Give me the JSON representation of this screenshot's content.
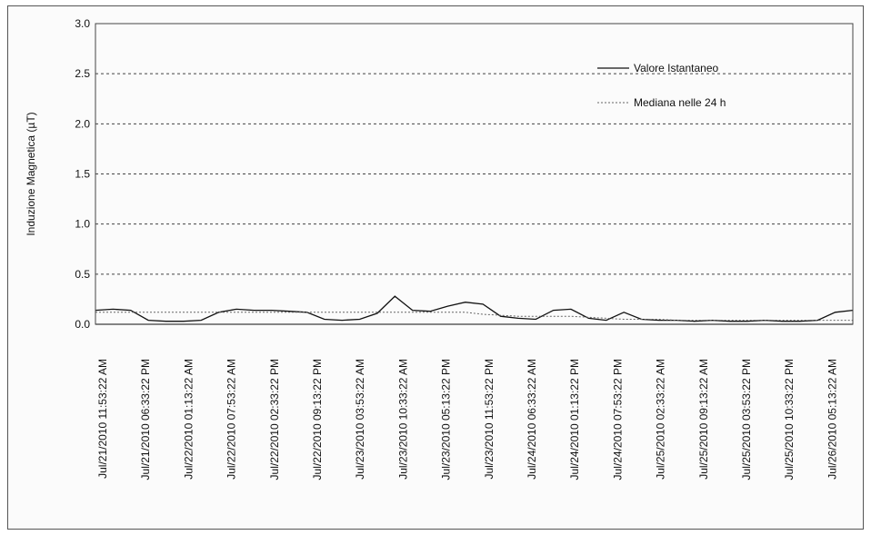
{
  "chart_data": {
    "type": "line",
    "ylabel": "Induzione Magnetica (µT)",
    "ylim": [
      0,
      3.0
    ],
    "yticks": [
      "0.0",
      "0.5",
      "1.0",
      "1.5",
      "2.0",
      "2.5",
      "3.0"
    ],
    "grid": "horizontal-dashed",
    "legend_position": "top-right",
    "x_labels": [
      "Jul/21/2010 11:53:22 AM",
      "Jul/21/2010 06:33:22 PM",
      "Jul/22/2010 01:13:22 AM",
      "Jul/22/2010 07:53:22 AM",
      "Jul/22/2010 02:33:22 PM",
      "Jul/22/2010 09:13:22 PM",
      "Jul/23/2010 03:53:22 AM",
      "Jul/23/2010 10:33:22 AM",
      "Jul/23/2010 05:13:22 PM",
      "Jul/23/2010 11:53:22 PM",
      "Jul/24/2010 06:33:22 AM",
      "Jul/24/2010 01:13:22 PM",
      "Jul/24/2010 07:53:22 PM",
      "Jul/25/2010 02:33:22 AM",
      "Jul/25/2010 09:13:22 AM",
      "Jul/25/2010 03:53:22 PM",
      "Jul/25/2010 10:33:22 PM",
      "Jul/26/2010 05:13:22 AM"
    ],
    "series": [
      {
        "name": "Valore Istantaneo",
        "color": "#111111",
        "style": "solid",
        "values": [
          0.14,
          0.15,
          0.14,
          0.04,
          0.03,
          0.03,
          0.04,
          0.12,
          0.15,
          0.14,
          0.14,
          0.13,
          0.12,
          0.05,
          0.04,
          0.05,
          0.11,
          0.28,
          0.14,
          0.13,
          0.18,
          0.22,
          0.2,
          0.08,
          0.06,
          0.05,
          0.14,
          0.15,
          0.06,
          0.04,
          0.12,
          0.05,
          0.04,
          0.04,
          0.03,
          0.04,
          0.03,
          0.03,
          0.04,
          0.03,
          0.03,
          0.04,
          0.12,
          0.14
        ]
      },
      {
        "name": "Mediana nelle 24 h",
        "color": "#666666",
        "style": "dotted",
        "values": [
          0.12,
          0.12,
          0.12,
          0.12,
          0.12,
          0.12,
          0.12,
          0.12,
          0.12,
          0.12,
          0.12,
          0.12,
          0.12,
          0.12,
          0.12,
          0.12,
          0.12,
          0.12,
          0.12,
          0.12,
          0.12,
          0.12,
          0.1,
          0.09,
          0.08,
          0.08,
          0.08,
          0.08,
          0.07,
          0.06,
          0.05,
          0.05,
          0.05,
          0.04,
          0.04,
          0.04,
          0.04,
          0.04,
          0.04,
          0.04,
          0.04,
          0.04,
          0.04,
          0.04
        ]
      }
    ]
  }
}
